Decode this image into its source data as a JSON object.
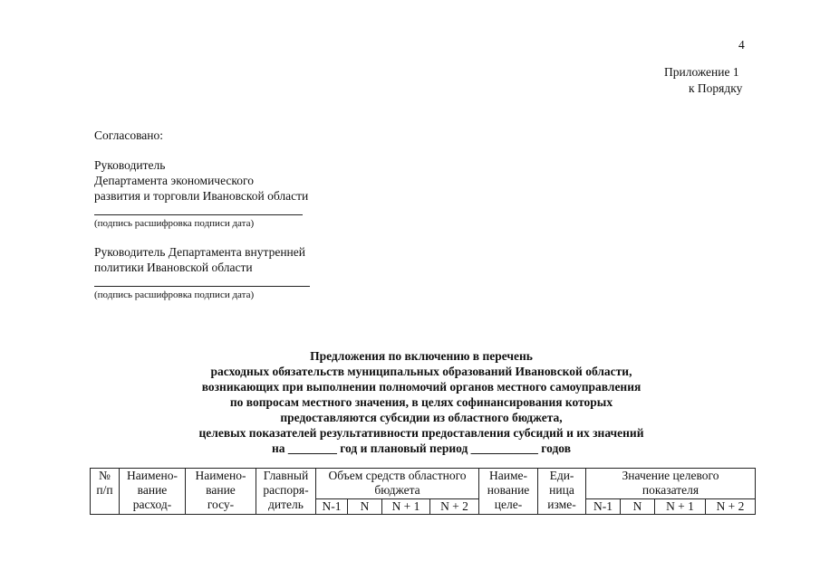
{
  "page_number": "4",
  "appendix": {
    "line1": "Приложение 1",
    "line2": "к Порядку"
  },
  "approval": {
    "heading": "Согласовано:",
    "block1": [
      "Руководитель",
      "Департамента экономического",
      "развития и торговли Ивановской области"
    ],
    "signature_caption1": "(подпись    расшифровка подписи    дата)",
    "block2": [
      "Руководитель Департамента внутренней",
      "политики Ивановской области"
    ],
    "signature_caption2": "(подпись    расшифровка подписи    дата)"
  },
  "title_lines": [
    "Предложения по включению в перечень",
    "расходных обязательств муниципальных образований Ивановской области,",
    "возникающих при выполнении полномочий органов местного самоуправления",
    "по вопросам местного значения, в целях софинансирования которых",
    "предоставляются субсидии из областного бюджета,",
    "целевых показателей результативности предоставления субсидий и их значений",
    "на ________ год и плановый период ___________ годов"
  ],
  "table": {
    "col_no": [
      "№",
      "п/п"
    ],
    "col_expense": [
      "Наимено-",
      "вание",
      "расход-"
    ],
    "col_program": [
      "Наимено-",
      "вание",
      "госу-"
    ],
    "col_manager": [
      "Главный",
      "распоря-",
      "дитель"
    ],
    "col_budget": {
      "header": [
        "Объем средств областного",
        "бюджета"
      ],
      "sub": [
        "N-1",
        "N",
        "N + 1",
        "N + 2"
      ]
    },
    "col_target": [
      "Наиме-",
      "нование",
      "целе-"
    ],
    "col_unit": [
      "Еди-",
      "ница",
      "изме-"
    ],
    "col_value": {
      "header": [
        "Значение целевого",
        "показателя"
      ],
      "sub": [
        "N-1",
        "N",
        "N + 1",
        "N + 2"
      ]
    }
  }
}
